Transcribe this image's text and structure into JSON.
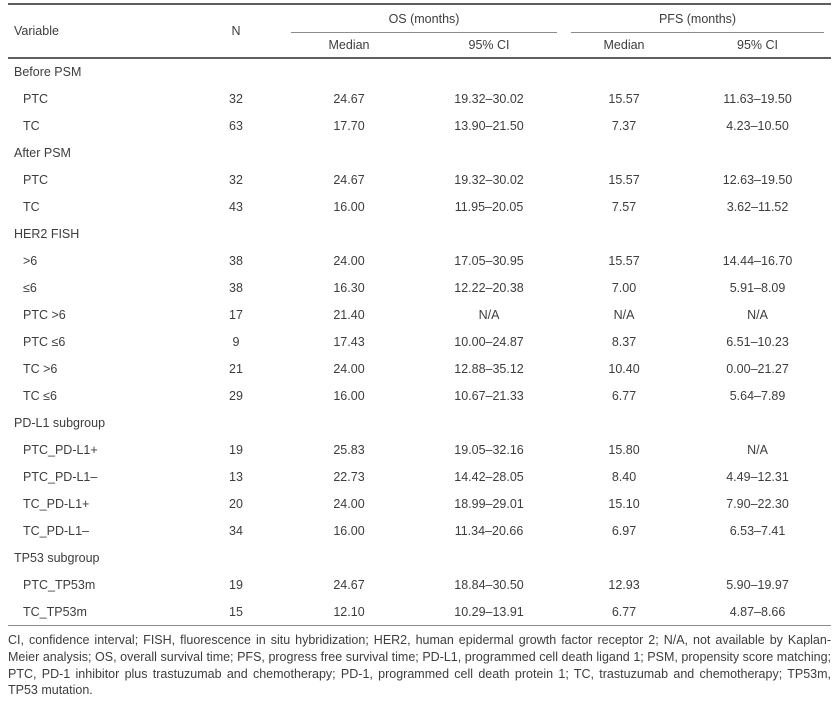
{
  "table": {
    "header": {
      "variable": "Variable",
      "n": "N",
      "os_group": "OS (months)",
      "pfs_group": "PFS (months)",
      "os_median": "Median",
      "os_ci": "95% CI",
      "pfs_median": "Median",
      "pfs_ci": "95% CI"
    },
    "rows": [
      {
        "type": "section",
        "label": "Before PSM"
      },
      {
        "type": "data",
        "label": "PTC",
        "n": "32",
        "os_median": "24.67",
        "os_ci": "19.32–30.02",
        "pfs_median": "15.57",
        "pfs_ci": "11.63–19.50"
      },
      {
        "type": "data",
        "label": "TC",
        "n": "63",
        "os_median": "17.70",
        "os_ci": "13.90–21.50",
        "pfs_median": "7.37",
        "pfs_ci": "4.23–10.50"
      },
      {
        "type": "section",
        "label": "After PSM"
      },
      {
        "type": "data",
        "label": "PTC",
        "n": "32",
        "os_median": "24.67",
        "os_ci": "19.32–30.02",
        "pfs_median": "15.57",
        "pfs_ci": "12.63–19.50"
      },
      {
        "type": "data",
        "label": "TC",
        "n": "43",
        "os_median": "16.00",
        "os_ci": "11.95–20.05",
        "pfs_median": "7.57",
        "pfs_ci": "3.62–11.52"
      },
      {
        "type": "section",
        "label": "HER2 FISH"
      },
      {
        "type": "data",
        "label": ">6",
        "n": "38",
        "os_median": "24.00",
        "os_ci": "17.05–30.95",
        "pfs_median": "15.57",
        "pfs_ci": "14.44–16.70"
      },
      {
        "type": "data",
        "label": "≤6",
        "n": "38",
        "os_median": "16.30",
        "os_ci": "12.22–20.38",
        "pfs_median": "7.00",
        "pfs_ci": "5.91–8.09"
      },
      {
        "type": "data",
        "label": "PTC >6",
        "n": "17",
        "os_median": "21.40",
        "os_ci": "N/A",
        "pfs_median": "N/A",
        "pfs_ci": "N/A"
      },
      {
        "type": "data",
        "label": "PTC ≤6",
        "n": "9",
        "os_median": "17.43",
        "os_ci": "10.00–24.87",
        "pfs_median": "8.37",
        "pfs_ci": "6.51–10.23"
      },
      {
        "type": "data",
        "label": "TC >6",
        "n": "21",
        "os_median": "24.00",
        "os_ci": "12.88–35.12",
        "pfs_median": "10.40",
        "pfs_ci": "0.00–21.27"
      },
      {
        "type": "data",
        "label": "TC ≤6",
        "n": "29",
        "os_median": "16.00",
        "os_ci": "10.67–21.33",
        "pfs_median": "6.77",
        "pfs_ci": "5.64–7.89"
      },
      {
        "type": "section",
        "label": "PD-L1 subgroup"
      },
      {
        "type": "data",
        "label": "PTC_PD-L1+",
        "n": "19",
        "os_median": "25.83",
        "os_ci": "19.05–32.16",
        "pfs_median": "15.80",
        "pfs_ci": "N/A"
      },
      {
        "type": "data",
        "label": "PTC_PD-L1–",
        "n": "13",
        "os_median": "22.73",
        "os_ci": "14.42–28.05",
        "pfs_median": "8.40",
        "pfs_ci": "4.49–12.31"
      },
      {
        "type": "data",
        "label": "TC_PD-L1+",
        "n": "20",
        "os_median": "24.00",
        "os_ci": "18.99–29.01",
        "pfs_median": "15.10",
        "pfs_ci": "7.90–22.30"
      },
      {
        "type": "data",
        "label": "TC_PD-L1–",
        "n": "34",
        "os_median": "16.00",
        "os_ci": "11.34–20.66",
        "pfs_median": "6.97",
        "pfs_ci": "6.53–7.41"
      },
      {
        "type": "section",
        "label": "TP53 subgroup"
      },
      {
        "type": "data",
        "label": "PTC_TP53m",
        "n": "19",
        "os_median": "24.67",
        "os_ci": "18.84–30.50",
        "pfs_median": "12.93",
        "pfs_ci": "5.90–19.97"
      },
      {
        "type": "data",
        "label": "TC_TP53m",
        "n": "15",
        "os_median": "12.10",
        "os_ci": "10.29–13.91",
        "pfs_median": "6.77",
        "pfs_ci": "4.87–8.66"
      }
    ],
    "footnote": "CI, confidence interval; FISH, fluorescence in situ hybridization; HER2, human epidermal growth factor receptor 2; N/A, not available by Kaplan-Meier analysis; OS, overall survival time; PFS, progress free survival time; PD-L1, programmed cell death ligand 1; PSM, propensity score matching; PTC, PD-1 inhibitor plus trastuzumab and chemotherapy; PD-1, programmed cell death protein 1; TC, trastuzumab and chemotherapy; TP53m, TP53 mutation."
  }
}
